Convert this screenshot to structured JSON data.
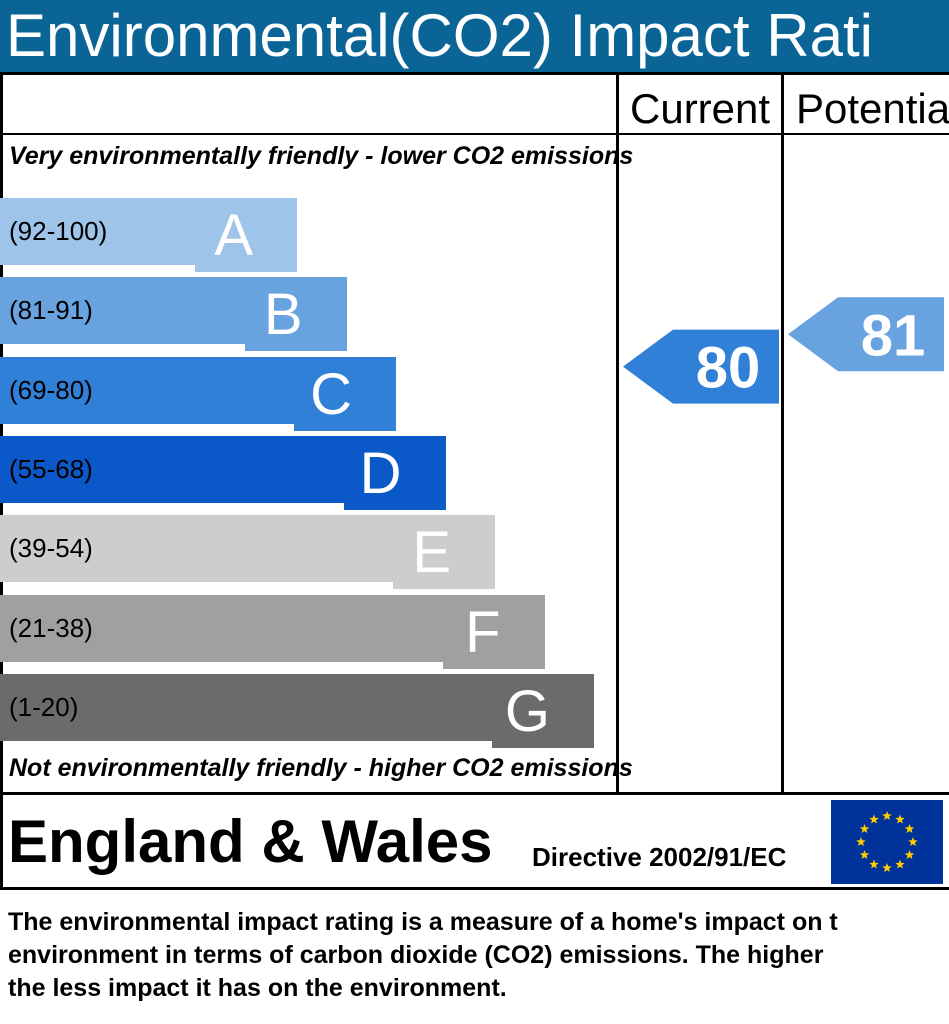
{
  "title": "Environmental(CO2) Impact Rati",
  "columns": {
    "current": "Current",
    "potential": "Potentia"
  },
  "top_caption": "Very environmentally friendly - lower CO2 emissions",
  "bottom_caption": "Not environmentally friendly - higher CO2 emissions",
  "footer": {
    "region": "England & Wales",
    "directive": "Directive 2002/91/EC"
  },
  "description": [
    "The environmental impact rating is a measure of a home's impact on t",
    "environment in terms of carbon dioxide (CO2) emissions. The higher",
    "the less impact it has on the environment."
  ],
  "chart_data": {
    "type": "bar",
    "bands": [
      {
        "letter": "A",
        "range": "(92-100)",
        "min": 92,
        "max": 100,
        "color": "#9fc4ea",
        "text_dark": true
      },
      {
        "letter": "B",
        "range": "(81-91)",
        "min": 81,
        "max": 91,
        "color": "#68a3e0",
        "text_dark": true
      },
      {
        "letter": "C",
        "range": "(69-80)",
        "min": 69,
        "max": 80,
        "color": "#3180d8",
        "text_dark": true
      },
      {
        "letter": "D",
        "range": "(55-68)",
        "min": 55,
        "max": 68,
        "color": "#0b58c8",
        "text_dark": true
      },
      {
        "letter": "E",
        "range": "(39-54)",
        "min": 39,
        "max": 54,
        "color": "#cdcdcd",
        "text_dark": true
      },
      {
        "letter": "F",
        "range": "(21-38)",
        "min": 21,
        "max": 38,
        "color": "#a0a0a0",
        "text_dark": true
      },
      {
        "letter": "G",
        "range": "(1-20)",
        "min": 1,
        "max": 20,
        "color": "#6b6b6b",
        "text_dark": true
      }
    ],
    "current": {
      "value": 80,
      "band": "C",
      "color": "#3180d8"
    },
    "potential": {
      "value": 81,
      "band": "B",
      "color": "#68a3e0"
    }
  }
}
